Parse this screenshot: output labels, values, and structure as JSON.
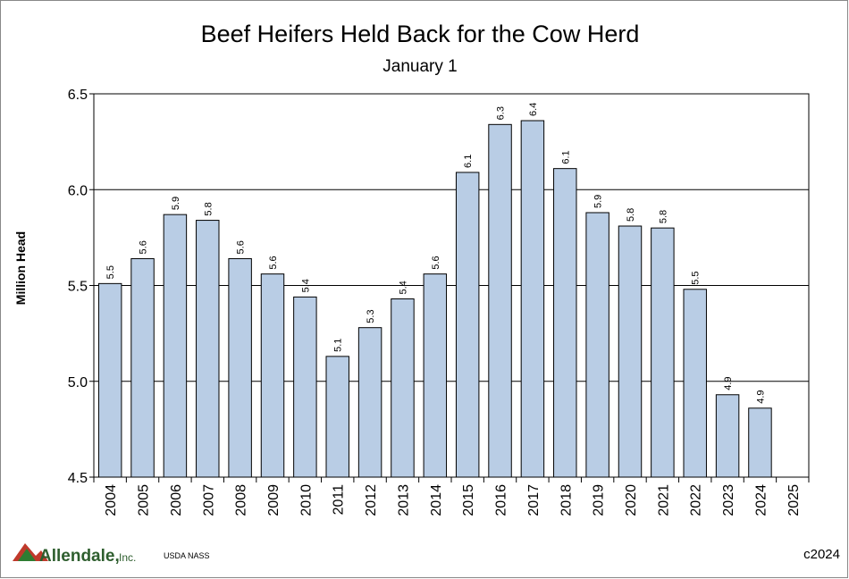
{
  "chart_data": {
    "type": "bar",
    "title": "Beef Heifers Held Back for the Cow Herd",
    "subtitle": "January 1",
    "y_label": "Million Head",
    "categories": [
      "2004",
      "2005",
      "2006",
      "2007",
      "2008",
      "2009",
      "2010",
      "2011",
      "2012",
      "2013",
      "2014",
      "2015",
      "2016",
      "2017",
      "2018",
      "2019",
      "2020",
      "2021",
      "2022",
      "2023",
      "2024",
      "2025"
    ],
    "values": [
      5.51,
      5.64,
      5.87,
      5.84,
      5.64,
      5.56,
      5.44,
      5.13,
      5.28,
      5.43,
      5.56,
      6.09,
      6.34,
      6.36,
      6.11,
      5.88,
      5.81,
      5.8,
      5.48,
      4.93,
      4.86,
      null
    ],
    "value_labels": [
      "5.5",
      "5.6",
      "5.9",
      "5.8",
      "5.6",
      "5.6",
      "5.4",
      "5.1",
      "5.3",
      "5.4",
      "5.6",
      "6.1",
      "6.3",
      "6.4",
      "6.1",
      "5.9",
      "5.8",
      "5.8",
      "5.5",
      "4.9",
      "4.9",
      null
    ],
    "color": "#b9cde5",
    "ylim": [
      4.5,
      6.5
    ],
    "yticks": [
      4.5,
      {
        "value": 5,
        "label": "5.0"
      },
      5.5,
      {
        "value": 6,
        "label": "6.0"
      },
      6.5
    ],
    "grid": true,
    "logo": {
      "name": "Allendale,",
      "suffix": "Inc."
    },
    "source": "USDA NASS",
    "copyright": "c2024"
  }
}
